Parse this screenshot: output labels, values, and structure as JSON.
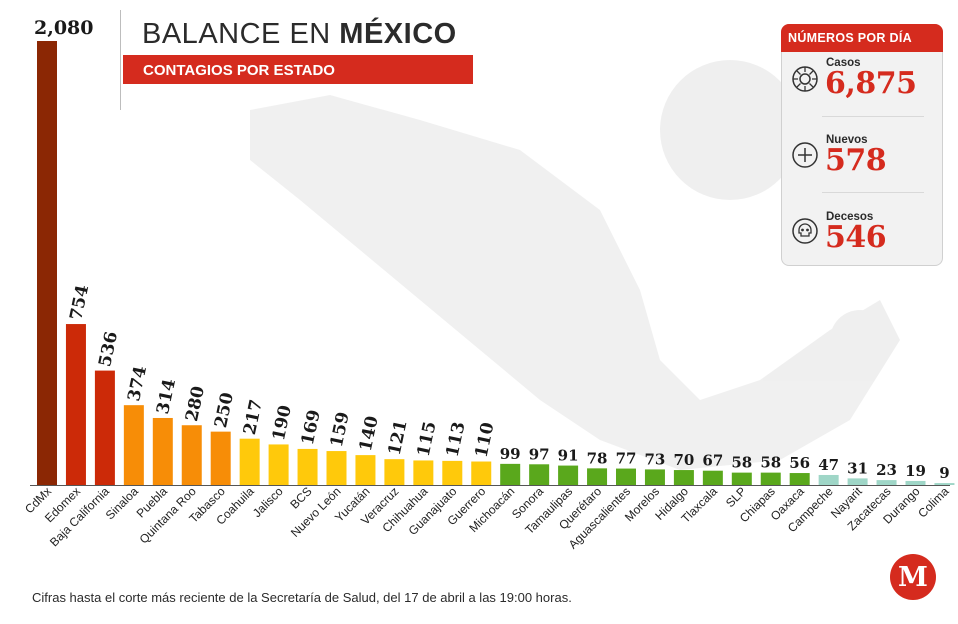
{
  "header": {
    "title_light": "BALANCE EN ",
    "title_bold": "MÉXICO",
    "subtitle": "CONTAGIOS POR ESTADO"
  },
  "panel": {
    "title": "NÚMEROS POR DÍA",
    "stats": [
      {
        "label": "Casos",
        "value": "6,875",
        "icon": "virus-icon"
      },
      {
        "label": "Nuevos",
        "value": "578",
        "icon": "plus-circle-icon"
      },
      {
        "label": "Decesos",
        "value": "546",
        "icon": "skull-icon"
      }
    ]
  },
  "footnote": "Cifras hasta el corte más reciente de la Secretaría de Salud, del 17 de abril a las 19:00 horas.",
  "logo": {
    "letter": "M"
  },
  "colors": {
    "brand_red": "#d52b1e",
    "dark_red": "#8b2704",
    "red": "#cc2a08",
    "orange": "#f78d07",
    "yellow": "#ffc90b",
    "green": "#5aa81c",
    "teal": "#9fd6c7"
  },
  "chart_data": {
    "type": "bar",
    "title": "BALANCE EN MÉXICO",
    "subtitle": "CONTAGIOS POR ESTADO",
    "xlabel": "",
    "ylabel": "",
    "grid": false,
    "categories": [
      "CdMx",
      "Edomex",
      "Baja California",
      "Sinaloa",
      "Puebla",
      "Quintana Roo",
      "Tabasco",
      "Coahuila",
      "Jalisco",
      "BCS",
      "Nuevo León",
      "Yucatán",
      "Veracruz",
      "Chihuahua",
      "Guanajuato",
      "Guerrero",
      "Michoacán",
      "Sonora",
      "Tamaulipas",
      "Querétaro",
      "Aguascalientes",
      "Morelos",
      "Hidalgo",
      "Tlaxcala",
      "SLP",
      "Chiapas",
      "Oaxaca",
      "Campeche",
      "Nayarit",
      "Zacatecas",
      "Durango",
      "Colima"
    ],
    "values": [
      2080,
      754,
      536,
      374,
      314,
      280,
      250,
      217,
      190,
      169,
      159,
      140,
      121,
      115,
      113,
      110,
      99,
      97,
      91,
      78,
      77,
      73,
      70,
      67,
      58,
      58,
      56,
      47,
      31,
      23,
      19,
      9
    ],
    "value_labels": [
      "2,080",
      "754",
      "536",
      "374",
      "314",
      "280",
      "250",
      "217",
      "190",
      "169",
      "159",
      "140",
      "121",
      "115",
      "113",
      "110",
      "99",
      "97",
      "91",
      "78",
      "77",
      "73",
      "70",
      "67",
      "58",
      "58",
      "56",
      "47",
      "31",
      "23",
      "19",
      "9"
    ]
  }
}
